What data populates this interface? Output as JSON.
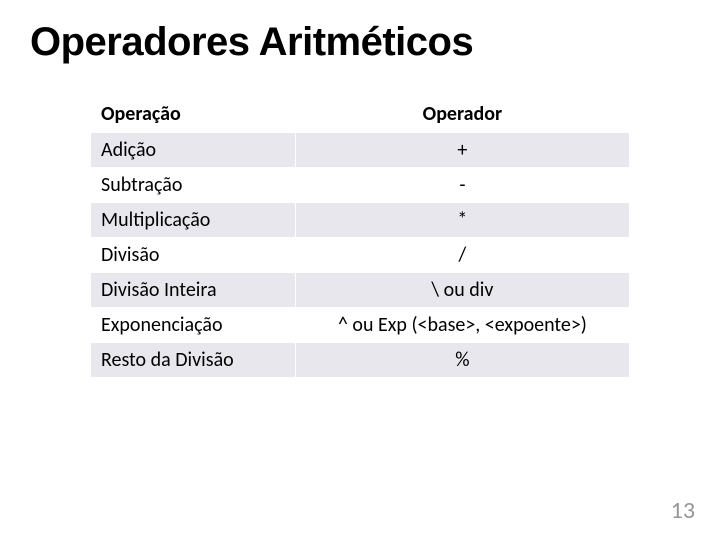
{
  "title": "Operadores Aritméticos",
  "table": {
    "columns": [
      "Operação",
      "Operador"
    ],
    "rows": [
      [
        "Adição",
        "+"
      ],
      [
        "Subtração",
        "-"
      ],
      [
        "Multiplicação",
        "*"
      ],
      [
        "Divisão",
        "/"
      ],
      [
        "Divisão Inteira",
        "\\ ou div"
      ],
      [
        "Exponenciação",
        "^ ou Exp (<base>, <expoente>)"
      ],
      [
        "Resto da Divisão",
        "%"
      ]
    ],
    "header_bg": "#ffffff",
    "row_light_bg": "#e8e7ed",
    "row_white_bg": "#ffffff",
    "border_color": "#ffffff",
    "font_size": 20,
    "text_color": "#000000"
  },
  "page_number": "13",
  "colors": {
    "background": "#ffffff",
    "title_color": "#000000",
    "page_number_color": "#969696"
  },
  "typography": {
    "title_fontsize": 40,
    "title_weight": 900,
    "body_fontsize": 20,
    "page_number_fontsize": 24
  }
}
